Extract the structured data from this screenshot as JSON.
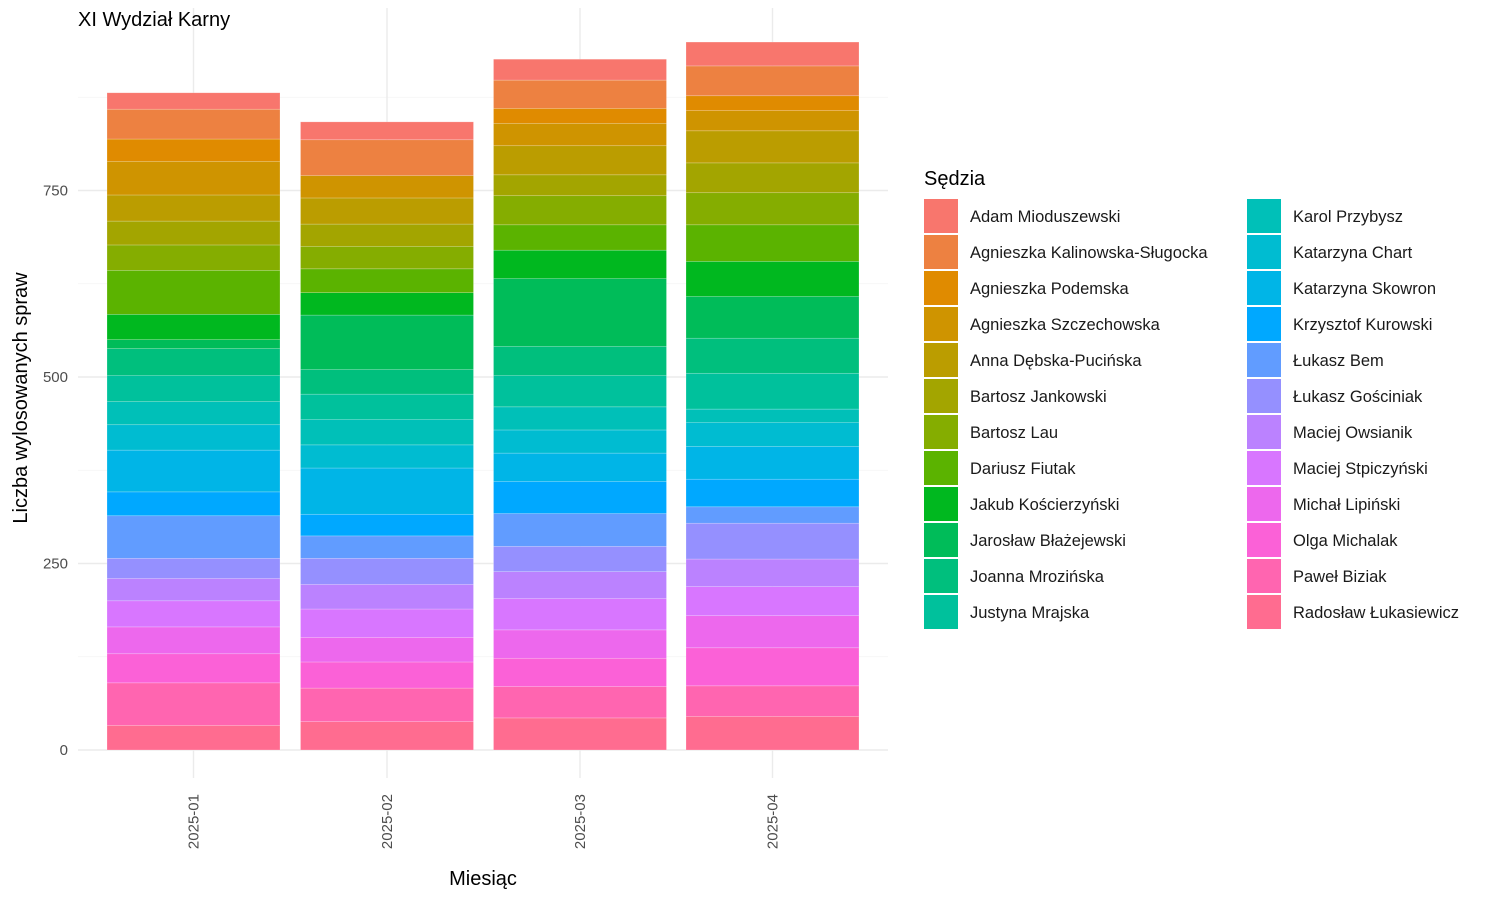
{
  "chart_data": {
    "type": "bar",
    "stacked": true,
    "title": "XI Wydział Karny",
    "xlabel": "Miesiąc",
    "ylabel": "Liczba wylosowanych spraw",
    "ylim": [
      0,
      950
    ],
    "y_ticks": [
      0,
      250,
      500,
      750
    ],
    "grid": true,
    "legend_title": "Sędzia",
    "legend_position": "right",
    "categories": [
      "2025-01",
      "2025-02",
      "2025-03",
      "2025-04"
    ],
    "series": [
      {
        "name": "Adam Mioduszewski",
        "color": "#F8766D",
        "values": [
          22,
          24,
          28,
          32
        ]
      },
      {
        "name": "Agnieszka Kalinowska-Sługocka",
        "color": "#ED8141",
        "values": [
          40,
          48,
          38,
          40
        ]
      },
      {
        "name": "Agnieszka Podemska",
        "color": "#E08B00",
        "values": [
          30,
          0,
          20,
          20
        ]
      },
      {
        "name": "Agnieszka Szczechowska",
        "color": "#CF9400",
        "values": [
          45,
          30,
          30,
          27
        ]
      },
      {
        "name": "Anna Dębska-Pucińska",
        "color": "#BB9D00",
        "values": [
          35,
          35,
          39,
          43
        ]
      },
      {
        "name": "Bartosz Jankowski",
        "color": "#A3A500",
        "values": [
          32,
          30,
          28,
          40
        ]
      },
      {
        "name": "Bartosz Lau",
        "color": "#85AD00",
        "values": [
          34,
          30,
          39,
          43
        ]
      },
      {
        "name": "Dariusz Fiutak",
        "color": "#5BB300",
        "values": [
          59,
          32,
          34,
          49
        ]
      },
      {
        "name": "Jakub Kościerzyński",
        "color": "#00B81F",
        "values": [
          34,
          30,
          38,
          47
        ]
      },
      {
        "name": "Jarosław Błażejewski",
        "color": "#00BC59",
        "values": [
          12,
          73,
          91,
          56
        ]
      },
      {
        "name": "Joanna Mrozińska",
        "color": "#00BF7D",
        "values": [
          36,
          33,
          39,
          47
        ]
      },
      {
        "name": "Justyna Mrajska",
        "color": "#00C19C",
        "values": [
          35,
          34,
          42,
          48
        ]
      },
      {
        "name": "Karol Przybysz",
        "color": "#00C0B8",
        "values": [
          31,
          34,
          31,
          18
        ]
      },
      {
        "name": "Katarzyna Chart",
        "color": "#00BCD1",
        "values": [
          34,
          31,
          31,
          32
        ]
      },
      {
        "name": "Katarzyna Skowron",
        "color": "#00B5E7",
        "values": [
          56,
          62,
          38,
          44
        ]
      },
      {
        "name": "Krzysztof Kurowski",
        "color": "#00A8FF",
        "values": [
          32,
          29,
          43,
          37
        ]
      },
      {
        "name": "Łukasz Bem",
        "color": "#619CFF",
        "values": [
          57,
          30,
          44,
          22
        ]
      },
      {
        "name": "Łukasz Gościniak",
        "color": "#9590FF",
        "values": [
          27,
          35,
          34,
          48
        ]
      },
      {
        "name": "Maciej Owsianik",
        "color": "#BB82FF",
        "values": [
          30,
          33,
          36,
          37
        ]
      },
      {
        "name": "Maciej Stpiczyński",
        "color": "#D876FF",
        "values": [
          35,
          38,
          42,
          39
        ]
      },
      {
        "name": "Michał Lipiński",
        "color": "#ED68ED",
        "values": [
          36,
          33,
          38,
          43
        ]
      },
      {
        "name": "Olga Michalak",
        "color": "#FB61D7",
        "values": [
          39,
          35,
          38,
          51
        ]
      },
      {
        "name": "Paweł Biziak",
        "color": "#FF65B0",
        "values": [
          57,
          45,
          42,
          41
        ]
      },
      {
        "name": "Radosław Łukasiewicz",
        "color": "#FF6C90",
        "values": [
          33,
          38,
          43,
          45
        ]
      }
    ]
  }
}
